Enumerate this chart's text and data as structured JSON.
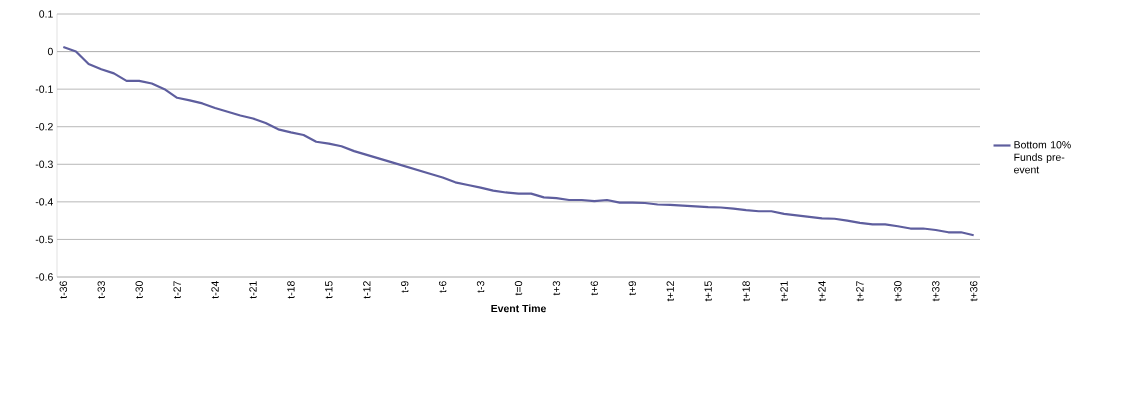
{
  "chart_data": {
    "type": "line",
    "xlabel": "Event Time",
    "categories": [
      "t-36",
      null,
      null,
      "t-33",
      null,
      null,
      "t-30",
      null,
      null,
      "t-27",
      null,
      null,
      "t-24",
      null,
      null,
      "t-21",
      null,
      null,
      "t-18",
      null,
      null,
      "t-15",
      null,
      null,
      "t-12",
      null,
      null,
      "t-9",
      null,
      null,
      "t-6",
      null,
      null,
      "t-3",
      null,
      null,
      "t=0",
      null,
      null,
      "t+3",
      null,
      null,
      "t+6",
      null,
      null,
      "t+9",
      null,
      null,
      "t+12",
      null,
      null,
      "t+15",
      null,
      null,
      "t+18",
      null,
      null,
      "t+21",
      null,
      null,
      "t+24",
      null,
      null,
      "t+27",
      null,
      null,
      "t+30",
      null,
      null,
      "t+33",
      null,
      null,
      "t+36"
    ],
    "series": [
      {
        "name": "Bottom 10% Funds pre-event",
        "color": "#5e5e9e",
        "values": [
          0.012,
          0.0,
          -0.033,
          -0.047,
          -0.058,
          -0.078,
          -0.078,
          -0.085,
          -0.1,
          -0.123,
          -0.13,
          -0.138,
          -0.15,
          -0.16,
          -0.17,
          -0.178,
          -0.19,
          -0.207,
          -0.215,
          -0.222,
          -0.24,
          -0.245,
          -0.252,
          -0.265,
          -0.275,
          -0.285,
          -0.295,
          -0.305,
          -0.315,
          -0.325,
          -0.335,
          -0.348,
          -0.355,
          -0.362,
          -0.37,
          -0.375,
          -0.378,
          -0.378,
          -0.388,
          -0.39,
          -0.395,
          -0.395,
          -0.398,
          -0.395,
          -0.402,
          -0.402,
          -0.403,
          -0.407,
          -0.408,
          -0.41,
          -0.412,
          -0.414,
          -0.415,
          -0.418,
          -0.422,
          -0.425,
          -0.425,
          -0.432,
          -0.436,
          -0.44,
          -0.444,
          -0.445,
          -0.45,
          -0.456,
          -0.46,
          -0.46,
          -0.465,
          -0.471,
          -0.471,
          -0.475,
          -0.481,
          -0.481,
          -0.489
        ]
      }
    ],
    "ylim": [
      -0.6,
      0.1
    ],
    "yticks": [
      -0.6,
      -0.5,
      -0.4,
      -0.3,
      -0.2,
      -0.1,
      0,
      0.1
    ],
    "grid": "y",
    "legend": "right",
    "marker": "none",
    "line_style": "solid"
  }
}
